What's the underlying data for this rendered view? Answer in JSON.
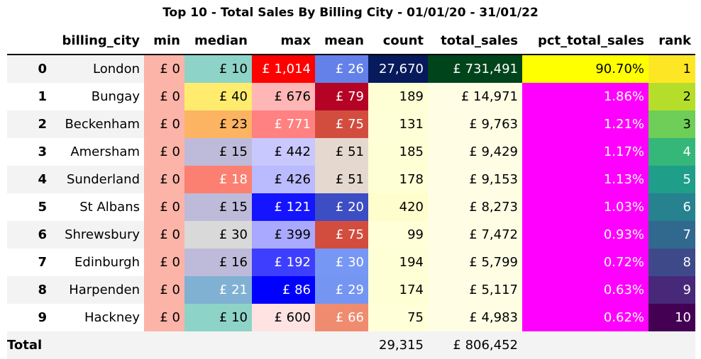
{
  "title": "Top 10 - Total Sales By Billing City - 01/01/20 - 31/01/22",
  "columns": {
    "index": "",
    "billing_city": "billing_city",
    "min": "min",
    "median": "median",
    "max": "max",
    "mean": "mean",
    "count": "count",
    "total_sales": "total_sales",
    "pct_total_sales": "pct_total_sales",
    "rank": "rank"
  },
  "rows": [
    {
      "index": "0",
      "billing_city": "London",
      "min": "£ 0",
      "median": "£ 10",
      "max": "£ 1,014",
      "mean": "£ 26",
      "count": "27,670",
      "total_sales": "£ 731,491",
      "pct_total_sales": "90.70%",
      "rank": "1"
    },
    {
      "index": "1",
      "billing_city": "Bungay",
      "min": "£ 0",
      "median": "£ 40",
      "max": "£ 676",
      "mean": "£ 79",
      "count": "189",
      "total_sales": "£ 14,971",
      "pct_total_sales": "1.86%",
      "rank": "2"
    },
    {
      "index": "2",
      "billing_city": "Beckenham",
      "min": "£ 0",
      "median": "£ 23",
      "max": "£ 771",
      "mean": "£ 75",
      "count": "131",
      "total_sales": "£ 9,763",
      "pct_total_sales": "1.21%",
      "rank": "3"
    },
    {
      "index": "3",
      "billing_city": "Amersham",
      "min": "£ 0",
      "median": "£ 15",
      "max": "£ 442",
      "mean": "£ 51",
      "count": "185",
      "total_sales": "£ 9,429",
      "pct_total_sales": "1.17%",
      "rank": "4"
    },
    {
      "index": "4",
      "billing_city": "Sunderland",
      "min": "£ 0",
      "median": "£ 18",
      "max": "£ 426",
      "mean": "£ 51",
      "count": "178",
      "total_sales": "£ 9,153",
      "pct_total_sales": "1.13%",
      "rank": "5"
    },
    {
      "index": "5",
      "billing_city": "St Albans",
      "min": "£ 0",
      "median": "£ 15",
      "max": "£ 121",
      "mean": "£ 20",
      "count": "420",
      "total_sales": "£ 8,273",
      "pct_total_sales": "1.03%",
      "rank": "6"
    },
    {
      "index": "6",
      "billing_city": "Shrewsbury",
      "min": "£ 0",
      "median": "£ 30",
      "max": "£ 399",
      "mean": "£ 75",
      "count": "99",
      "total_sales": "£ 7,472",
      "pct_total_sales": "0.93%",
      "rank": "7"
    },
    {
      "index": "7",
      "billing_city": "Edinburgh",
      "min": "£ 0",
      "median": "£ 16",
      "max": "£ 192",
      "mean": "£ 30",
      "count": "194",
      "total_sales": "£ 5,799",
      "pct_total_sales": "0.72%",
      "rank": "8"
    },
    {
      "index": "8",
      "billing_city": "Harpenden",
      "min": "£ 0",
      "median": "£ 21",
      "max": "£ 86",
      "mean": "£ 29",
      "count": "174",
      "total_sales": "£ 5,117",
      "pct_total_sales": "0.63%",
      "rank": "9"
    },
    {
      "index": "9",
      "billing_city": "Hackney",
      "min": "£ 0",
      "median": "£ 10",
      "max": "£ 600",
      "mean": "£ 66",
      "count": "75",
      "total_sales": "£ 4,983",
      "pct_total_sales": "0.62%",
      "rank": "10"
    }
  ],
  "cell_colors": {
    "min": [
      "#fcb3a8",
      "#fcb3a8",
      "#fcb3a8",
      "#fcb3a8",
      "#fcb3a8",
      "#fcb3a8",
      "#fcb3a8",
      "#fcb3a8",
      "#fcb3a8",
      "#fcb3a8"
    ],
    "median": [
      "#8ed3c7",
      "#ffec6f",
      "#fcb462",
      "#bebada",
      "#fb8072",
      "#bebada",
      "#d9d9d9",
      "#bebada",
      "#80b1d3",
      "#8ed3c7"
    ],
    "max": [
      "#ff0000",
      "#ffb6b6",
      "#ff8181",
      "#c8c8ff",
      "#babaff",
      "#1414ff",
      "#a9a9ff",
      "#3e3eff",
      "#0000ff",
      "#ffe3e3"
    ],
    "mean": [
      "#6381e9",
      "#b50325",
      "#d24d3e",
      "#e5d9cf",
      "#e5d9cf",
      "#3d4dc3",
      "#d24d3e",
      "#7797f5",
      "#7595f3",
      "#ef8c6f"
    ],
    "count": [
      "#061a5c",
      "#ffffd5",
      "#ffffd7",
      "#ffffd5",
      "#ffffd5",
      "#fdfecc",
      "#ffffd8",
      "#ffffd5",
      "#ffffd5",
      "#ffffd8"
    ],
    "total_sales": [
      "#00441c",
      "#fffde4",
      "#fffee5",
      "#fffee5",
      "#fffee5",
      "#fffee5",
      "#fffee5",
      "#fffee5",
      "#fffee5",
      "#fffee5"
    ],
    "pct_total_sales": [
      "#ffff00",
      "#ff00ff",
      "#ff00ff",
      "#ff00ff",
      "#ff00ff",
      "#ff00ff",
      "#ff00ff",
      "#ff00ff",
      "#ff00ff",
      "#ff00ff"
    ],
    "rank": [
      "#fde725",
      "#b5de2b",
      "#6ece58",
      "#35b779",
      "#1f9e89",
      "#26828e",
      "#31688e",
      "#3e4989",
      "#482878",
      "#440154"
    ]
  },
  "white_text": {
    "median": [
      false,
      false,
      false,
      false,
      true,
      false,
      false,
      false,
      true,
      false
    ],
    "max": [
      true,
      false,
      true,
      false,
      false,
      true,
      false,
      true,
      true,
      false
    ],
    "mean": [
      true,
      true,
      true,
      false,
      false,
      true,
      true,
      true,
      true,
      true
    ],
    "count": [
      true,
      false,
      false,
      false,
      false,
      false,
      false,
      false,
      false,
      false
    ],
    "total_sales": [
      true,
      false,
      false,
      false,
      false,
      false,
      false,
      false,
      false,
      false
    ],
    "pct_total_sales": [
      false,
      true,
      true,
      true,
      true,
      true,
      true,
      true,
      true,
      true
    ],
    "rank": [
      false,
      false,
      false,
      true,
      true,
      true,
      true,
      true,
      true,
      true
    ]
  },
  "totals": {
    "label": "Total",
    "count": "29,315",
    "total_sales": "£ 806,452"
  }
}
